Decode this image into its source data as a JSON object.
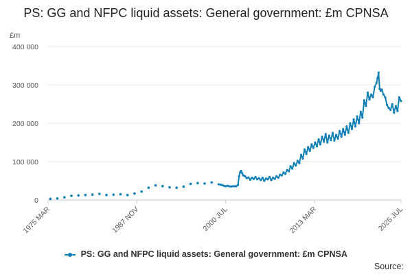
{
  "title": "PS: GG and NFPC liquid assets: General government: £m CPNSA",
  "unit_label": "£m",
  "legend_label": "PS: GG and NFPC liquid assets: General government: £m CPNSA",
  "source_label": "Source:",
  "colors": {
    "series": "#0f7fb6",
    "grid": "#e6e6e6",
    "axis": "#cccccc"
  },
  "chart_data": {
    "type": "line",
    "title": "PS: GG and NFPC liquid assets: General government: £m CPNSA",
    "ylabel": "£m",
    "ylim": [
      0,
      400000
    ],
    "xlim": [
      1975.17,
      2025.5
    ],
    "grid": true,
    "legend_position": "bottom",
    "y_ticks": [
      {
        "value": 0,
        "label": "0"
      },
      {
        "value": 100000,
        "label": "100 000"
      },
      {
        "value": 200000,
        "label": "200 000"
      },
      {
        "value": 300000,
        "label": "300 000"
      },
      {
        "value": 400000,
        "label": "400 000"
      }
    ],
    "x_ticks": [
      {
        "value": 1975.17,
        "label": "1975 MAR"
      },
      {
        "value": 1987.83,
        "label": "1987 NOV"
      },
      {
        "value": 2000.5,
        "label": "2000 JUL"
      },
      {
        "value": 2013.17,
        "label": "2013 MAR"
      },
      {
        "value": 2025.5,
        "label": "2025 JUL"
      }
    ],
    "series": [
      {
        "name": "PS: GG and NFPC liquid assets: General government: £m CPNSA",
        "annual_points": [
          [
            1975.5,
            3000
          ],
          [
            1976.5,
            4000
          ],
          [
            1977.5,
            7000
          ],
          [
            1978.5,
            11000
          ],
          [
            1979.5,
            12000
          ],
          [
            1980.5,
            13000
          ],
          [
            1981.5,
            14000
          ],
          [
            1982.5,
            16000
          ],
          [
            1983.5,
            13000
          ],
          [
            1984.5,
            14000
          ],
          [
            1985.5,
            15000
          ],
          [
            1986.5,
            13000
          ],
          [
            1987.5,
            17000
          ],
          [
            1988.5,
            22000
          ],
          [
            1989.5,
            32000
          ],
          [
            1990.5,
            38000
          ],
          [
            1991.5,
            36000
          ],
          [
            1992.5,
            33000
          ],
          [
            1993.5,
            32000
          ],
          [
            1994.5,
            35000
          ],
          [
            1995.5,
            42000
          ],
          [
            1996.5,
            44000
          ],
          [
            1997.5,
            43000
          ],
          [
            1998.5,
            46000
          ]
        ],
        "monthly_points": [
          [
            1999.5,
            41000
          ],
          [
            1999.75,
            40000
          ],
          [
            2000.0,
            39000
          ],
          [
            2000.25,
            37000
          ],
          [
            2000.5,
            36000
          ],
          [
            2000.75,
            37000
          ],
          [
            2001.0,
            36000
          ],
          [
            2001.25,
            35000
          ],
          [
            2001.5,
            36000
          ],
          [
            2001.75,
            36000
          ],
          [
            2002.0,
            36000
          ],
          [
            2002.25,
            39000
          ],
          [
            2002.4,
            62000
          ],
          [
            2002.55,
            72000
          ],
          [
            2002.7,
            76000
          ],
          [
            2002.85,
            70000
          ],
          [
            2003.0,
            64000
          ],
          [
            2003.25,
            62000
          ],
          [
            2003.5,
            57000
          ],
          [
            2003.75,
            59000
          ],
          [
            2004.0,
            53000
          ],
          [
            2004.25,
            58000
          ],
          [
            2004.5,
            55000
          ],
          [
            2004.75,
            60000
          ],
          [
            2005.0,
            54000
          ],
          [
            2005.25,
            57000
          ],
          [
            2005.5,
            52000
          ],
          [
            2005.75,
            58000
          ],
          [
            2006.0,
            50000
          ],
          [
            2006.25,
            56000
          ],
          [
            2006.5,
            54000
          ],
          [
            2006.75,
            60000
          ],
          [
            2007.0,
            52000
          ],
          [
            2007.25,
            58000
          ],
          [
            2007.5,
            55000
          ],
          [
            2007.75,
            62000
          ],
          [
            2008.0,
            58000
          ],
          [
            2008.25,
            66000
          ],
          [
            2008.5,
            64000
          ],
          [
            2008.75,
            72000
          ],
          [
            2009.0,
            68000
          ],
          [
            2009.25,
            78000
          ],
          [
            2009.5,
            75000
          ],
          [
            2009.75,
            88000
          ],
          [
            2010.0,
            82000
          ],
          [
            2010.25,
            96000
          ],
          [
            2010.5,
            90000
          ],
          [
            2010.75,
            102000
          ],
          [
            2011.0,
            96000
          ],
          [
            2011.25,
            118000
          ],
          [
            2011.5,
            108000
          ],
          [
            2011.75,
            132000
          ],
          [
            2012.0,
            120000
          ],
          [
            2012.25,
            138000
          ],
          [
            2012.5,
            128000
          ],
          [
            2012.75,
            145000
          ],
          [
            2013.0,
            136000
          ],
          [
            2013.25,
            150000
          ],
          [
            2013.5,
            140000
          ],
          [
            2013.75,
            158000
          ],
          [
            2014.0,
            145000
          ],
          [
            2014.25,
            165000
          ],
          [
            2014.5,
            152000
          ],
          [
            2014.75,
            172000
          ],
          [
            2015.0,
            150000
          ],
          [
            2015.25,
            168000
          ],
          [
            2015.5,
            156000
          ],
          [
            2015.75,
            175000
          ],
          [
            2016.0,
            155000
          ],
          [
            2016.25,
            170000
          ],
          [
            2016.5,
            160000
          ],
          [
            2016.75,
            180000
          ],
          [
            2017.0,
            165000
          ],
          [
            2017.25,
            185000
          ],
          [
            2017.5,
            170000
          ],
          [
            2017.75,
            192000
          ],
          [
            2018.0,
            175000
          ],
          [
            2018.25,
            200000
          ],
          [
            2018.5,
            185000
          ],
          [
            2018.75,
            210000
          ],
          [
            2019.0,
            192000
          ],
          [
            2019.25,
            218000
          ],
          [
            2019.5,
            200000
          ],
          [
            2019.75,
            230000
          ],
          [
            2020.0,
            215000
          ],
          [
            2020.25,
            260000
          ],
          [
            2020.5,
            245000
          ],
          [
            2020.75,
            280000
          ],
          [
            2021.0,
            262000
          ],
          [
            2021.25,
            275000
          ],
          [
            2021.5,
            268000
          ],
          [
            2021.75,
            295000
          ],
          [
            2022.0,
            305000
          ],
          [
            2022.15,
            318000
          ],
          [
            2022.3,
            332000
          ],
          [
            2022.45,
            290000
          ],
          [
            2022.6,
            285000
          ],
          [
            2022.75,
            288000
          ],
          [
            2023.0,
            275000
          ],
          [
            2023.25,
            268000
          ],
          [
            2023.5,
            248000
          ],
          [
            2023.75,
            240000
          ],
          [
            2024.0,
            235000
          ],
          [
            2024.25,
            250000
          ],
          [
            2024.5,
            228000
          ],
          [
            2024.75,
            245000
          ],
          [
            2025.0,
            232000
          ],
          [
            2025.25,
            268000
          ],
          [
            2025.5,
            258000
          ]
        ]
      }
    ]
  }
}
